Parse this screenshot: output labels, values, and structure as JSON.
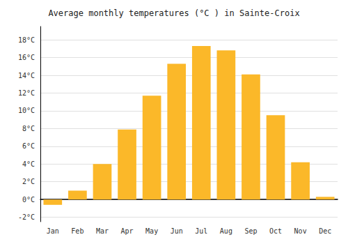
{
  "chart_data": {
    "type": "bar",
    "title": "Average monthly temperatures (°C ) in Sainte-Croix",
    "categories": [
      "Jan",
      "Feb",
      "Mar",
      "Apr",
      "May",
      "Jun",
      "Jul",
      "Aug",
      "Sep",
      "Oct",
      "Nov",
      "Dec"
    ],
    "values": [
      -0.6,
      1.0,
      4.0,
      7.9,
      11.7,
      15.3,
      17.3,
      16.8,
      14.1,
      9.5,
      4.2,
      0.3
    ],
    "color": "#FBB829",
    "ylim": [
      -2.5,
      19.5
    ],
    "yticks": [
      {
        "value": -2,
        "label": "-2°C"
      },
      {
        "value": 0,
        "label": "0°C"
      },
      {
        "value": 2,
        "label": "2°C"
      },
      {
        "value": 4,
        "label": "4°C"
      },
      {
        "value": 6,
        "label": "6°C"
      },
      {
        "value": 8,
        "label": "8°C"
      },
      {
        "value": 10,
        "label": "10°C"
      },
      {
        "value": 12,
        "label": "12°C"
      },
      {
        "value": 14,
        "label": "14°C"
      },
      {
        "value": 16,
        "label": "16°C"
      },
      {
        "value": 18,
        "label": "18°C"
      }
    ],
    "grid": true
  }
}
